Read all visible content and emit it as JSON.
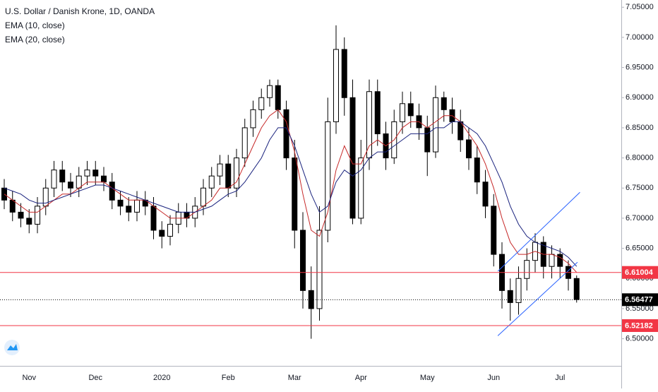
{
  "chart_data": {
    "type": "candlestick",
    "title": "U.S. Dollar / Danish Krone, 1D, OANDA",
    "categories": [
      null,
      null,
      null,
      "Nov",
      null,
      null,
      null,
      null,
      null,
      null,
      null,
      "Dec",
      null,
      null,
      null,
      null,
      null,
      null,
      null,
      "2020",
      null,
      null,
      null,
      null,
      null,
      null,
      null,
      "Feb",
      null,
      null,
      null,
      null,
      null,
      null,
      null,
      "Mar",
      null,
      null,
      null,
      null,
      null,
      null,
      null,
      "Apr",
      null,
      null,
      null,
      null,
      null,
      null,
      null,
      "May",
      null,
      null,
      null,
      null,
      null,
      null,
      null,
      "Jun",
      null,
      null,
      null,
      null,
      null,
      null,
      null,
      "Jul",
      null,
      null
    ],
    "open": [
      6.75,
      6.73,
      6.71,
      6.7,
      6.69,
      6.72,
      6.75,
      6.78,
      6.76,
      6.75,
      6.77,
      6.78,
      6.77,
      6.76,
      6.73,
      6.72,
      6.71,
      6.73,
      6.72,
      6.68,
      6.67,
      6.69,
      6.71,
      6.7,
      6.72,
      6.75,
      6.77,
      6.79,
      6.75,
      6.8,
      6.85,
      6.88,
      6.9,
      6.92,
      6.88,
      6.8,
      6.68,
      6.58,
      6.55,
      6.68,
      6.86,
      6.98,
      6.9,
      6.7,
      6.8,
      6.91,
      6.84,
      6.8,
      6.86,
      6.89,
      6.87,
      6.85,
      6.81,
      6.9,
      6.88,
      6.86,
      6.83,
      6.8,
      6.76,
      6.72,
      6.64,
      6.58,
      6.56,
      6.6,
      6.63,
      6.66,
      6.62,
      6.64,
      6.62,
      6.6
    ],
    "high": [
      6.765,
      6.745,
      6.725,
      6.715,
      6.735,
      6.765,
      6.795,
      6.795,
      6.775,
      6.785,
      6.795,
      6.795,
      6.785,
      6.775,
      6.745,
      6.735,
      6.745,
      6.745,
      6.735,
      6.695,
      6.705,
      6.725,
      6.725,
      6.735,
      6.765,
      6.785,
      6.805,
      6.805,
      6.815,
      6.865,
      6.895,
      6.915,
      6.93,
      6.93,
      6.895,
      6.83,
      6.71,
      6.62,
      6.72,
      6.9,
      7.02,
      7.0,
      6.93,
      6.83,
      6.93,
      6.93,
      6.86,
      6.88,
      6.91,
      6.91,
      6.89,
      6.87,
      6.92,
      6.91,
      6.9,
      6.88,
      6.85,
      6.82,
      6.78,
      6.74,
      6.66,
      6.6,
      6.62,
      6.65,
      6.675,
      6.67,
      6.655,
      6.65,
      6.63,
      6.605
    ],
    "low": [
      6.715,
      6.695,
      6.685,
      6.675,
      6.675,
      6.705,
      6.735,
      6.745,
      6.735,
      6.735,
      6.755,
      6.755,
      6.745,
      6.715,
      6.705,
      6.695,
      6.695,
      6.705,
      6.665,
      6.65,
      6.655,
      6.675,
      6.685,
      6.685,
      6.705,
      6.735,
      6.755,
      6.735,
      6.735,
      6.785,
      6.835,
      6.865,
      6.885,
      6.865,
      6.78,
      6.65,
      6.55,
      6.5,
      6.53,
      6.66,
      6.84,
      6.87,
      6.69,
      6.69,
      6.78,
      6.82,
      6.78,
      6.79,
      6.84,
      6.85,
      6.83,
      6.77,
      6.8,
      6.86,
      6.84,
      6.81,
      6.78,
      6.74,
      6.7,
      6.62,
      6.55,
      6.53,
      6.54,
      6.58,
      6.61,
      6.6,
      6.6,
      6.6,
      6.58,
      6.56
    ],
    "close": [
      6.73,
      6.71,
      6.7,
      6.69,
      6.72,
      6.75,
      6.78,
      6.76,
      6.75,
      6.77,
      6.78,
      6.77,
      6.76,
      6.73,
      6.72,
      6.71,
      6.73,
      6.72,
      6.68,
      6.67,
      6.69,
      6.71,
      6.7,
      6.72,
      6.75,
      6.77,
      6.79,
      6.75,
      6.8,
      6.85,
      6.88,
      6.9,
      6.92,
      6.88,
      6.8,
      6.68,
      6.58,
      6.55,
      6.68,
      6.86,
      6.98,
      6.9,
      6.7,
      6.8,
      6.91,
      6.84,
      6.8,
      6.86,
      6.89,
      6.87,
      6.85,
      6.81,
      6.9,
      6.88,
      6.86,
      6.83,
      6.8,
      6.76,
      6.72,
      6.64,
      6.58,
      6.56,
      6.6,
      6.63,
      6.66,
      6.62,
      6.64,
      6.62,
      6.6,
      6.565
    ],
    "up_color": "#ffffff",
    "down_color": "#000000",
    "series": [
      {
        "name": "EMA (10, close)",
        "color": "#c62828",
        "values": [
          6.74,
          6.73,
          6.72,
          6.71,
          6.71,
          6.72,
          6.73,
          6.74,
          6.74,
          6.75,
          6.76,
          6.76,
          6.76,
          6.75,
          6.74,
          6.73,
          6.73,
          6.73,
          6.72,
          6.71,
          6.7,
          6.7,
          6.7,
          6.71,
          6.72,
          6.73,
          6.75,
          6.75,
          6.76,
          6.79,
          6.82,
          6.85,
          6.87,
          6.88,
          6.86,
          6.81,
          6.74,
          6.68,
          6.67,
          6.71,
          6.78,
          6.82,
          6.79,
          6.79,
          6.82,
          6.83,
          6.82,
          6.83,
          6.85,
          6.86,
          6.86,
          6.85,
          6.86,
          6.87,
          6.87,
          6.86,
          6.84,
          6.82,
          6.79,
          6.75,
          6.7,
          6.66,
          6.64,
          6.64,
          6.645,
          6.64,
          6.64,
          6.635,
          6.625,
          6.61
        ]
      },
      {
        "name": "EMA (20, close)",
        "color": "#1a237e",
        "values": [
          6.75,
          6.745,
          6.74,
          6.73,
          6.725,
          6.725,
          6.73,
          6.735,
          6.74,
          6.745,
          6.75,
          6.755,
          6.755,
          6.75,
          6.745,
          6.74,
          6.735,
          6.73,
          6.725,
          6.72,
          6.715,
          6.71,
          6.71,
          6.71,
          6.715,
          6.72,
          6.73,
          6.74,
          6.745,
          6.76,
          6.78,
          6.8,
          6.83,
          6.85,
          6.85,
          6.82,
          6.78,
          6.74,
          6.71,
          6.72,
          6.76,
          6.78,
          6.77,
          6.78,
          6.8,
          6.81,
          6.81,
          6.82,
          6.83,
          6.84,
          6.84,
          6.84,
          6.85,
          6.85,
          6.86,
          6.86,
          6.85,
          6.84,
          6.82,
          6.79,
          6.76,
          6.72,
          6.69,
          6.67,
          6.66,
          6.655,
          6.65,
          6.645,
          6.635,
          6.62
        ]
      }
    ],
    "hlines": [
      {
        "value": 6.61004,
        "color": "#f23645"
      },
      {
        "value": 6.56477,
        "color": "#000000"
      },
      {
        "value": 6.52182,
        "color": "#f23645"
      }
    ],
    "trendlines": [
      {
        "x": [
          59.5,
          69.1
        ],
        "y": [
          6.505,
          6.627
        ],
        "color": "#2962ff"
      },
      {
        "x": [
          59.5,
          69.4
        ],
        "y": [
          6.612,
          6.743
        ],
        "color": "#2962ff"
      }
    ],
    "ylim": [
      6.455,
      7.062
    ],
    "yticks": [
      {
        "value": 6.5,
        "label": "6.50000"
      },
      {
        "value": 6.55,
        "label": "6.55000"
      },
      {
        "value": 6.6,
        "label": "6.60000"
      },
      {
        "value": 6.65,
        "label": "6.65000"
      },
      {
        "value": 6.7,
        "label": "6.70000"
      },
      {
        "value": 6.75,
        "label": "6.75000"
      },
      {
        "value": 6.8,
        "label": "6.80000"
      },
      {
        "value": 6.85,
        "label": "6.85000"
      },
      {
        "value": 6.9,
        "label": "6.90000"
      },
      {
        "value": 6.95,
        "label": "6.95000"
      },
      {
        "value": 7.0,
        "label": "7.00000"
      },
      {
        "value": 7.05,
        "label": "7.05000"
      }
    ]
  }
}
